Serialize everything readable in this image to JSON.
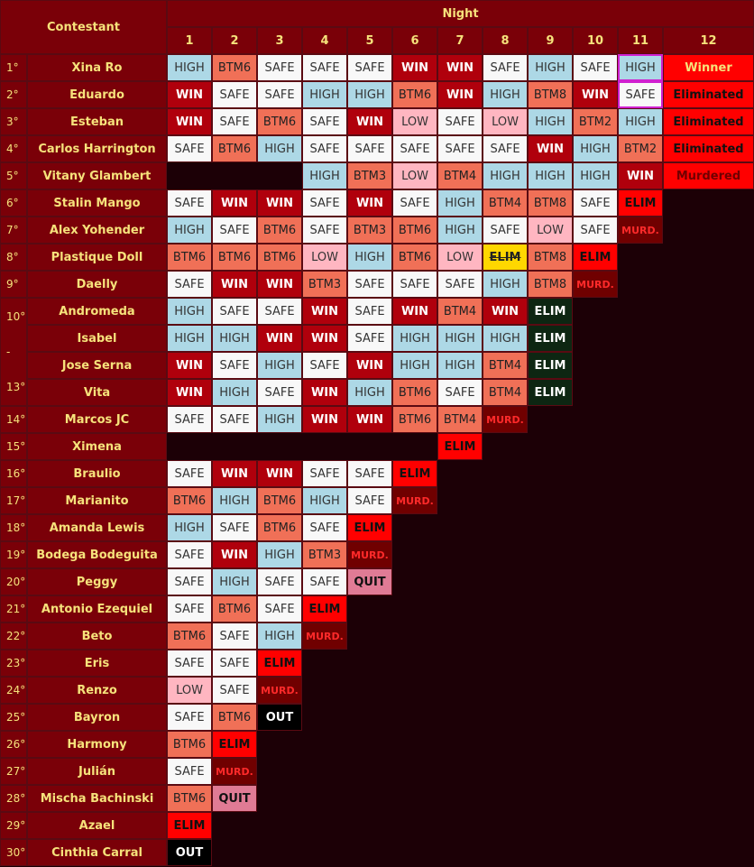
{
  "header": {
    "contestant": "Contestant",
    "night": "Night",
    "nights": [
      "1",
      "2",
      "3",
      "4",
      "5",
      "6",
      "7",
      "8",
      "9",
      "10",
      "11",
      "12"
    ]
  },
  "rows": [
    {
      "rank": "1°",
      "name": "Xina Ro",
      "results": [
        "HIGH",
        "BTM6",
        "SAFE",
        "SAFE",
        "SAFE",
        "WIN",
        "WIN",
        "SAFE",
        "HIGH",
        "SAFE",
        "HIGH",
        "Winner"
      ]
    },
    {
      "rank": "2°",
      "name": "Eduardo",
      "results": [
        "WIN",
        "SAFE",
        "SAFE",
        "HIGH",
        "HIGH",
        "BTM6",
        "WIN",
        "HIGH",
        "BTM8",
        "WIN",
        "SAFE",
        "Eliminated"
      ]
    },
    {
      "rank": "3°",
      "name": "Esteban",
      "results": [
        "WIN",
        "SAFE",
        "BTM6",
        "SAFE",
        "WIN",
        "LOW",
        "SAFE",
        "LOW",
        "HIGH",
        "BTM2",
        "HIGH",
        "Eliminated"
      ]
    },
    {
      "rank": "4°",
      "name": "Carlos Harrington",
      "results": [
        "SAFE",
        "BTM6",
        "HIGH",
        "SAFE",
        "SAFE",
        "SAFE",
        "SAFE",
        "SAFE",
        "WIN",
        "HIGH",
        "BTM2",
        "Eliminated"
      ]
    },
    {
      "rank": "5°",
      "name": "Vitany Glambert",
      "results": [
        "",
        "",
        "",
        "HIGH",
        "BTM3",
        "LOW",
        "BTM4",
        "HIGH",
        "HIGH",
        "HIGH",
        "WIN",
        "Murdered"
      ]
    },
    {
      "rank": "6°",
      "name": "Stalin Mango",
      "results": [
        "SAFE",
        "WIN",
        "WIN",
        "SAFE",
        "WIN",
        "SAFE",
        "HIGH",
        "BTM4",
        "BTM8",
        "SAFE",
        "ELIM"
      ]
    },
    {
      "rank": "7°",
      "name": "Alex Yohender",
      "results": [
        "HIGH",
        "SAFE",
        "BTM6",
        "SAFE",
        "BTM3",
        "BTM6",
        "HIGH",
        "SAFE",
        "LOW",
        "SAFE",
        "MURD."
      ]
    },
    {
      "rank": "8°",
      "name": "Plastique Doll",
      "results": [
        "BTM6",
        "BTM6",
        "BTM6",
        "LOW",
        "HIGH",
        "BTM6",
        "LOW",
        "ELIM",
        "BTM8",
        "ELIM"
      ]
    },
    {
      "rank": "9°",
      "name": "Daelly",
      "results": [
        "SAFE",
        "WIN",
        "WIN",
        "BTM3",
        "SAFE",
        "SAFE",
        "SAFE",
        "HIGH",
        "BTM8",
        "MURD."
      ]
    },
    {
      "rank": "10°",
      "name": "Andromeda",
      "results": [
        "HIGH",
        "SAFE",
        "SAFE",
        "WIN",
        "SAFE",
        "WIN",
        "BTM4",
        "WIN",
        "ELIM"
      ]
    },
    {
      "rank": "-",
      "name": "Isabel",
      "results": [
        "HIGH",
        "HIGH",
        "WIN",
        "WIN",
        "SAFE",
        "HIGH",
        "HIGH",
        "HIGH",
        "ELIM"
      ]
    },
    {
      "rank": "13°",
      "name": "Jose Serna",
      "results": [
        "WIN",
        "SAFE",
        "HIGH",
        "SAFE",
        "WIN",
        "HIGH",
        "HIGH",
        "BTM4",
        "ELIM"
      ]
    },
    {
      "rank": "",
      "name": "Vita",
      "results": [
        "WIN",
        "HIGH",
        "SAFE",
        "WIN",
        "HIGH",
        "BTM6",
        "SAFE",
        "BTM4",
        "ELIM"
      ]
    },
    {
      "rank": "14°",
      "name": "Marcos JC",
      "results": [
        "SAFE",
        "SAFE",
        "HIGH",
        "WIN",
        "WIN",
        "BTM6",
        "BTM4",
        "MURD."
      ]
    },
    {
      "rank": "15°",
      "name": "Ximena",
      "results": [
        "",
        "",
        "",
        "",
        "",
        "",
        "ELIM"
      ]
    },
    {
      "rank": "16°",
      "name": "Braulio",
      "results": [
        "SAFE",
        "WIN",
        "WIN",
        "SAFE",
        "SAFE",
        "ELIM"
      ]
    },
    {
      "rank": "17°",
      "name": "Marianito",
      "results": [
        "BTM6",
        "HIGH",
        "BTM6",
        "HIGH",
        "SAFE",
        "MURD."
      ]
    },
    {
      "rank": "18°",
      "name": "Amanda Lewis",
      "results": [
        "HIGH",
        "SAFE",
        "BTM6",
        "SAFE",
        "ELIM"
      ]
    },
    {
      "rank": "19°",
      "name": "Bodega Bodeguita",
      "results": [
        "SAFE",
        "WIN",
        "HIGH",
        "BTM3",
        "MURD."
      ]
    },
    {
      "rank": "20°",
      "name": "Peggy",
      "results": [
        "SAFE",
        "HIGH",
        "SAFE",
        "SAFE",
        "QUIT"
      ]
    },
    {
      "rank": "21°",
      "name": "Antonio Ezequiel",
      "results": [
        "SAFE",
        "BTM6",
        "SAFE",
        "ELIM"
      ]
    },
    {
      "rank": "22°",
      "name": "Beto",
      "results": [
        "BTM6",
        "SAFE",
        "HIGH",
        "MURD."
      ]
    },
    {
      "rank": "23°",
      "name": "Eris",
      "results": [
        "SAFE",
        "SAFE",
        "ELIM"
      ]
    },
    {
      "rank": "24°",
      "name": "Renzo",
      "results": [
        "LOW",
        "SAFE",
        "MURD."
      ]
    },
    {
      "rank": "25°",
      "name": "Bayron",
      "results": [
        "SAFE",
        "BTM6",
        "OUT"
      ]
    },
    {
      "rank": "26°",
      "name": "Harmony",
      "results": [
        "BTM6",
        "ELIM"
      ]
    },
    {
      "rank": "27°",
      "name": "Julián",
      "results": [
        "SAFE",
        "MURD."
      ]
    },
    {
      "rank": "28°",
      "name": "Mischa Bachinski",
      "results": [
        "BTM6",
        "QUIT"
      ]
    },
    {
      "rank": "29°",
      "name": "Azael",
      "results": [
        "ELIM"
      ]
    },
    {
      "rank": "30°",
      "name": "Cinthia Carral",
      "results": [
        "OUT"
      ]
    }
  ]
}
